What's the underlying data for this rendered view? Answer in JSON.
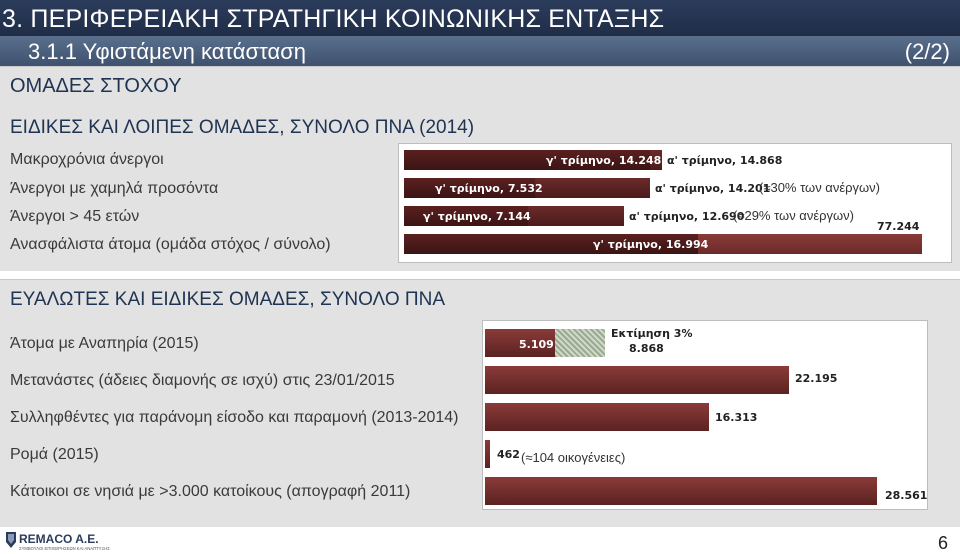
{
  "header": {
    "title": "3. ΠΕΡΙΦΕΡΕΙΑΚΗ ΣΤΡΑΤΗΓΙΚΗ ΚΟΙΝΩΝΙΚΗΣ ΕΝΤΑΞΗΣ",
    "subtitle": "3.1.1 Υφιστάμενη κατάσταση",
    "page_indicator": "(2/2)"
  },
  "group_title": "ΟΜΑΔΕΣ ΣΤΟΧΟΥ",
  "section1": {
    "title": "ΕΙΔΙΚΕΣ ΚΑΙ ΛΟΙΠΕΣ ΟΜΑΔΕΣ, ΣΥΝΟΛΟ ΠΝΑ (2014)",
    "rows": [
      {
        "label": "Μακροχρόνια άνεργοι",
        "bar1_text": "γ' τρίμηνο, 14.248",
        "bar2_text": "α' τρίμηνο, 14.868",
        "note": "",
        "value": 14868
      },
      {
        "label": "Άνεργοι με χαμηλά προσόντα",
        "bar1_text": "γ' τρίμηνο, 7.532",
        "bar2_text": "α' τρίμηνο, 14.201",
        "note": "(≈30% των ανέργων)",
        "value": 14201
      },
      {
        "label": "Άνεργοι > 45 ετών",
        "bar1_text": "γ' τρίμηνο, 7.144",
        "bar2_text": "α' τρίμηνο, 12.690",
        "note": "(≈29% των ανέργων)",
        "value": 12690
      },
      {
        "label": "Ανασφάλιστα άτομα (ομάδα στόχος / σύνολο)",
        "bar1_text": "γ' τρίμηνο, 16.994",
        "bar2_text": "77.244",
        "note": "",
        "value": 77244
      }
    ]
  },
  "section2": {
    "title": "ΕΥΑΛΩΤΕΣ ΚΑΙ ΕΙΔΙΚΕΣ ΟΜΑΔΕΣ, ΣΥΝΟΛΟ ΠΝΑ",
    "rows": [
      {
        "label": "Άτομα με Αναπηρία (2015)",
        "value_text": "5.109",
        "estimate_text": "Εκτίμηση 3%",
        "estimate_value": "8.868",
        "value": 5109
      },
      {
        "label": "Μετανάστες (άδειες διαμονής σε ισχύ) στις 23/01/2015",
        "value_text": "22.195",
        "value": 22195
      },
      {
        "label": "Συλληφθέντες για παράνομη είσοδο και παραμονή (2013-2014)",
        "value_text": "16.313",
        "value": 16313
      },
      {
        "label": "Ρομά (2015)",
        "value_text": "462",
        "note": "(≈104 οικογένειες)",
        "value": 462
      },
      {
        "label": "Κάτοικοι σε νησιά με >3.000 κατοίκους (απογραφή 2011)",
        "value_text": "28.561",
        "value": 28561
      }
    ]
  },
  "footer": {
    "logo_text": "REMACO A.E.",
    "logo_tagline": "ΣΥΜΒΟΥΛΟΙ ΕΠΙΧΕΙΡΗΣΕΩΝ ΚΑΙ ΑΝΑΠΤΥΞΗΣ",
    "page_number": "6"
  },
  "colors": {
    "header_dark": "#1f2d47",
    "header_light": "#4a5e7c",
    "bar_dark": "#4a1b1b",
    "bar_mid": "#6b2a2a",
    "section_bg": "#e2e2e2",
    "title_text": "#1f3352"
  }
}
